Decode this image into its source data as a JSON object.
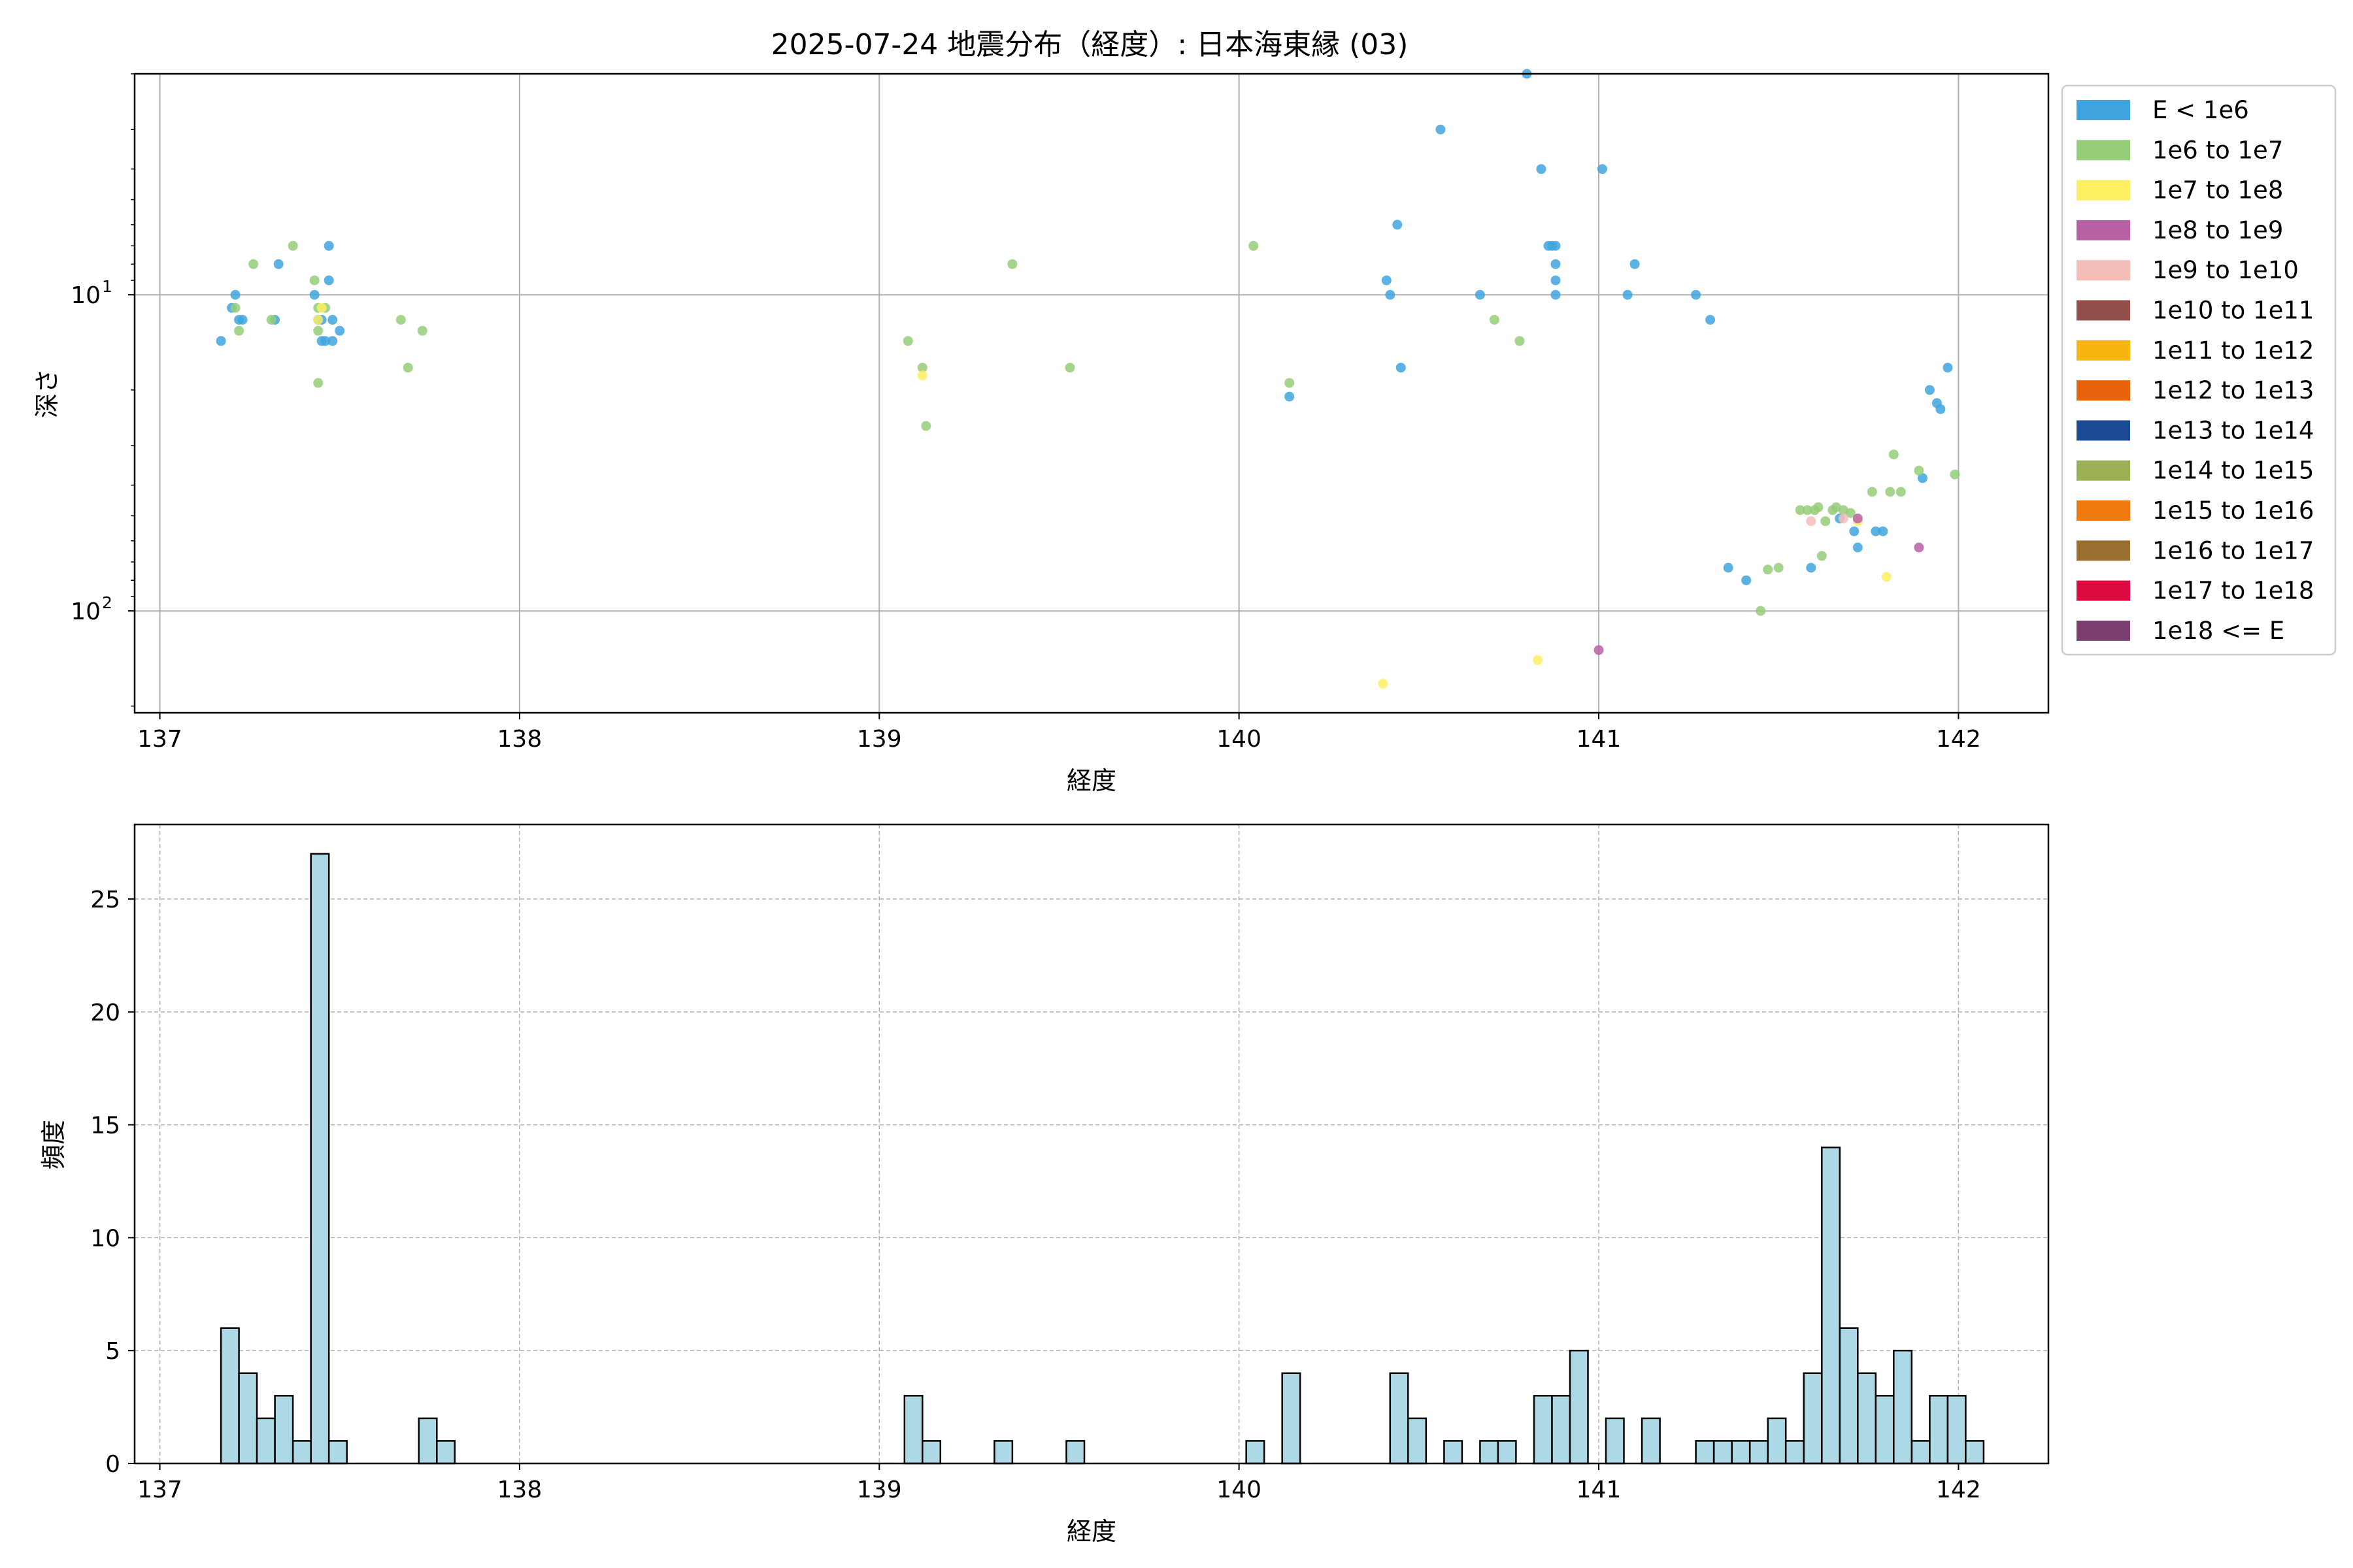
{
  "chart_data": [
    {
      "type": "scatter",
      "title": "2025-07-24 地震分布（経度）: 日本海東縁 (03)",
      "xlabel": "経度",
      "ylabel": "深さ",
      "xlim": [
        136.93,
        142.25
      ],
      "ylim": [
        210,
        2
      ],
      "yscale": "log",
      "yaxis_inverted": true,
      "grid": true,
      "x_ticks": [
        137,
        138,
        139,
        140,
        141,
        142
      ],
      "y_ticks": [
        {
          "value": 10,
          "label": "10",
          "exp": "1"
        },
        {
          "value": 100,
          "label": "10",
          "exp": "2"
        }
      ],
      "legend_position": "outside-right-top",
      "legend": [
        {
          "label": "E < 1e6",
          "color": "#3fa4de"
        },
        {
          "label": "1e6 to 1e7",
          "color": "#95cc78"
        },
        {
          "label": "1e7 to 1e8",
          "color": "#fdee62"
        },
        {
          "label": "1e8 to 1e9",
          "color": "#b860a4"
        },
        {
          "label": "1e9 to 1e10",
          "color": "#f4bdb8"
        },
        {
          "label": "1e10 to 1e11",
          "color": "#934f4c"
        },
        {
          "label": "1e11 to 1e12",
          "color": "#f8b50f"
        },
        {
          "label": "1e12 to 1e13",
          "color": "#e9620c"
        },
        {
          "label": "1e13 to 1e14",
          "color": "#1d4a94"
        },
        {
          "label": "1e14 to 1e15",
          "color": "#9baf54"
        },
        {
          "label": "1e15 to 1e16",
          "color": "#ee7a0f"
        },
        {
          "label": "1e16 to 1e17",
          "color": "#9a7131"
        },
        {
          "label": "1e17 to 1e18",
          "color": "#dc0a40"
        },
        {
          "label": "1e18 <= E",
          "color": "#7a3f6f"
        }
      ],
      "series": [
        {
          "class": "E < 1e6",
          "points": [
            [
              137.17,
              14
            ],
            [
              137.2,
              11
            ],
            [
              137.21,
              10
            ],
            [
              137.22,
              12
            ],
            [
              137.23,
              12
            ],
            [
              137.33,
              8
            ],
            [
              137.32,
              12
            ],
            [
              137.43,
              10
            ],
            [
              137.44,
              12
            ],
            [
              137.45,
              12
            ],
            [
              137.45,
              14
            ],
            [
              137.46,
              14
            ],
            [
              137.47,
              7
            ],
            [
              137.47,
              9
            ],
            [
              137.48,
              12
            ],
            [
              137.48,
              14
            ],
            [
              137.5,
              13
            ],
            [
              140.14,
              21
            ],
            [
              140.41,
              9
            ],
            [
              140.42,
              10
            ],
            [
              140.44,
              6
            ],
            [
              140.45,
              17
            ],
            [
              140.56,
              3
            ],
            [
              140.67,
              10
            ],
            [
              140.8,
              2
            ],
            [
              140.84,
              4
            ],
            [
              140.86,
              7
            ],
            [
              140.87,
              7
            ],
            [
              140.88,
              8
            ],
            [
              140.88,
              7
            ],
            [
              140.88,
              9
            ],
            [
              140.88,
              10
            ],
            [
              141.01,
              4
            ],
            [
              141.08,
              10
            ],
            [
              141.1,
              8
            ],
            [
              141.27,
              10
            ],
            [
              141.31,
              12
            ],
            [
              141.36,
              73
            ],
            [
              141.41,
              80
            ],
            [
              141.59,
              73
            ],
            [
              141.67,
              51
            ],
            [
              141.71,
              56
            ],
            [
              141.72,
              63
            ],
            [
              141.77,
              56
            ],
            [
              141.79,
              56
            ],
            [
              141.9,
              38
            ],
            [
              141.92,
              20
            ],
            [
              141.94,
              22
            ],
            [
              141.95,
              23
            ],
            [
              141.97,
              17
            ]
          ]
        },
        {
          "class": "1e6 to 1e7",
          "points": [
            [
              137.21,
              11
            ],
            [
              137.22,
              13
            ],
            [
              137.26,
              8
            ],
            [
              137.31,
              12
            ],
            [
              137.37,
              7
            ],
            [
              137.43,
              9
            ],
            [
              137.44,
              11
            ],
            [
              137.44,
              13
            ],
            [
              137.46,
              11
            ],
            [
              137.44,
              19
            ],
            [
              137.67,
              12
            ],
            [
              137.69,
              17
            ],
            [
              137.73,
              13
            ],
            [
              139.08,
              14
            ],
            [
              139.12,
              17
            ],
            [
              139.13,
              26
            ],
            [
              139.37,
              8
            ],
            [
              139.53,
              17
            ],
            [
              140.04,
              7
            ],
            [
              140.14,
              19
            ],
            [
              140.71,
              12
            ],
            [
              140.78,
              14
            ],
            [
              141.45,
              100
            ],
            [
              141.47,
              74
            ],
            [
              141.5,
              73
            ],
            [
              141.56,
              48
            ],
            [
              141.58,
              48
            ],
            [
              141.6,
              48
            ],
            [
              141.61,
              47
            ],
            [
              141.62,
              67
            ],
            [
              141.63,
              52
            ],
            [
              141.65,
              48
            ],
            [
              141.66,
              47
            ],
            [
              141.68,
              48
            ],
            [
              141.7,
              49
            ],
            [
              141.76,
              42
            ],
            [
              141.81,
              42
            ],
            [
              141.82,
              32
            ],
            [
              141.84,
              42
            ],
            [
              141.89,
              36
            ],
            [
              141.99,
              37
            ]
          ]
        },
        {
          "class": "1e7 to 1e8",
          "points": [
            [
              137.45,
              11
            ],
            [
              137.44,
              12
            ],
            [
              139.12,
              18
            ],
            [
              140.4,
              170
            ],
            [
              140.83,
              143
            ],
            [
              141.72,
              52
            ],
            [
              141.8,
              78
            ]
          ]
        },
        {
          "class": "1e8 to 1e9",
          "points": [
            [
              141.0,
              133
            ],
            [
              141.72,
              51
            ],
            [
              141.89,
              63
            ]
          ]
        },
        {
          "class": "1e9 to 1e10",
          "points": [
            [
              141.59,
              52
            ],
            [
              141.68,
              51
            ]
          ]
        }
      ]
    },
    {
      "type": "histogram",
      "xlabel": "経度",
      "ylabel": "頻度",
      "xlim": [
        136.93,
        142.25
      ],
      "ylim": [
        0,
        28.3
      ],
      "grid": true,
      "x_ticks": [
        137,
        138,
        139,
        140,
        141,
        142
      ],
      "y_ticks": [
        0,
        5,
        10,
        15,
        20,
        25
      ],
      "bin_start": 137.17,
      "bin_width": 0.05,
      "values": [
        6,
        4,
        2,
        3,
        1,
        27,
        1,
        0,
        0,
        0,
        0,
        2,
        1,
        0,
        0,
        0,
        0,
        0,
        0,
        0,
        0,
        0,
        0,
        0,
        0,
        0,
        0,
        0,
        0,
        0,
        0,
        0,
        0,
        0,
        0,
        0,
        0,
        0,
        3,
        1,
        0,
        0,
        0,
        1,
        0,
        0,
        0,
        1,
        0,
        0,
        0,
        0,
        0,
        0,
        0,
        0,
        0,
        1,
        0,
        4,
        0,
        0,
        0,
        0,
        0,
        4,
        2,
        0,
        1,
        0,
        1,
        1,
        0,
        3,
        3,
        5,
        0,
        2,
        0,
        2,
        0,
        0,
        1,
        1,
        1,
        1,
        2,
        1,
        4,
        14,
        6,
        4,
        3,
        5,
        1,
        3,
        3,
        1
      ]
    }
  ]
}
